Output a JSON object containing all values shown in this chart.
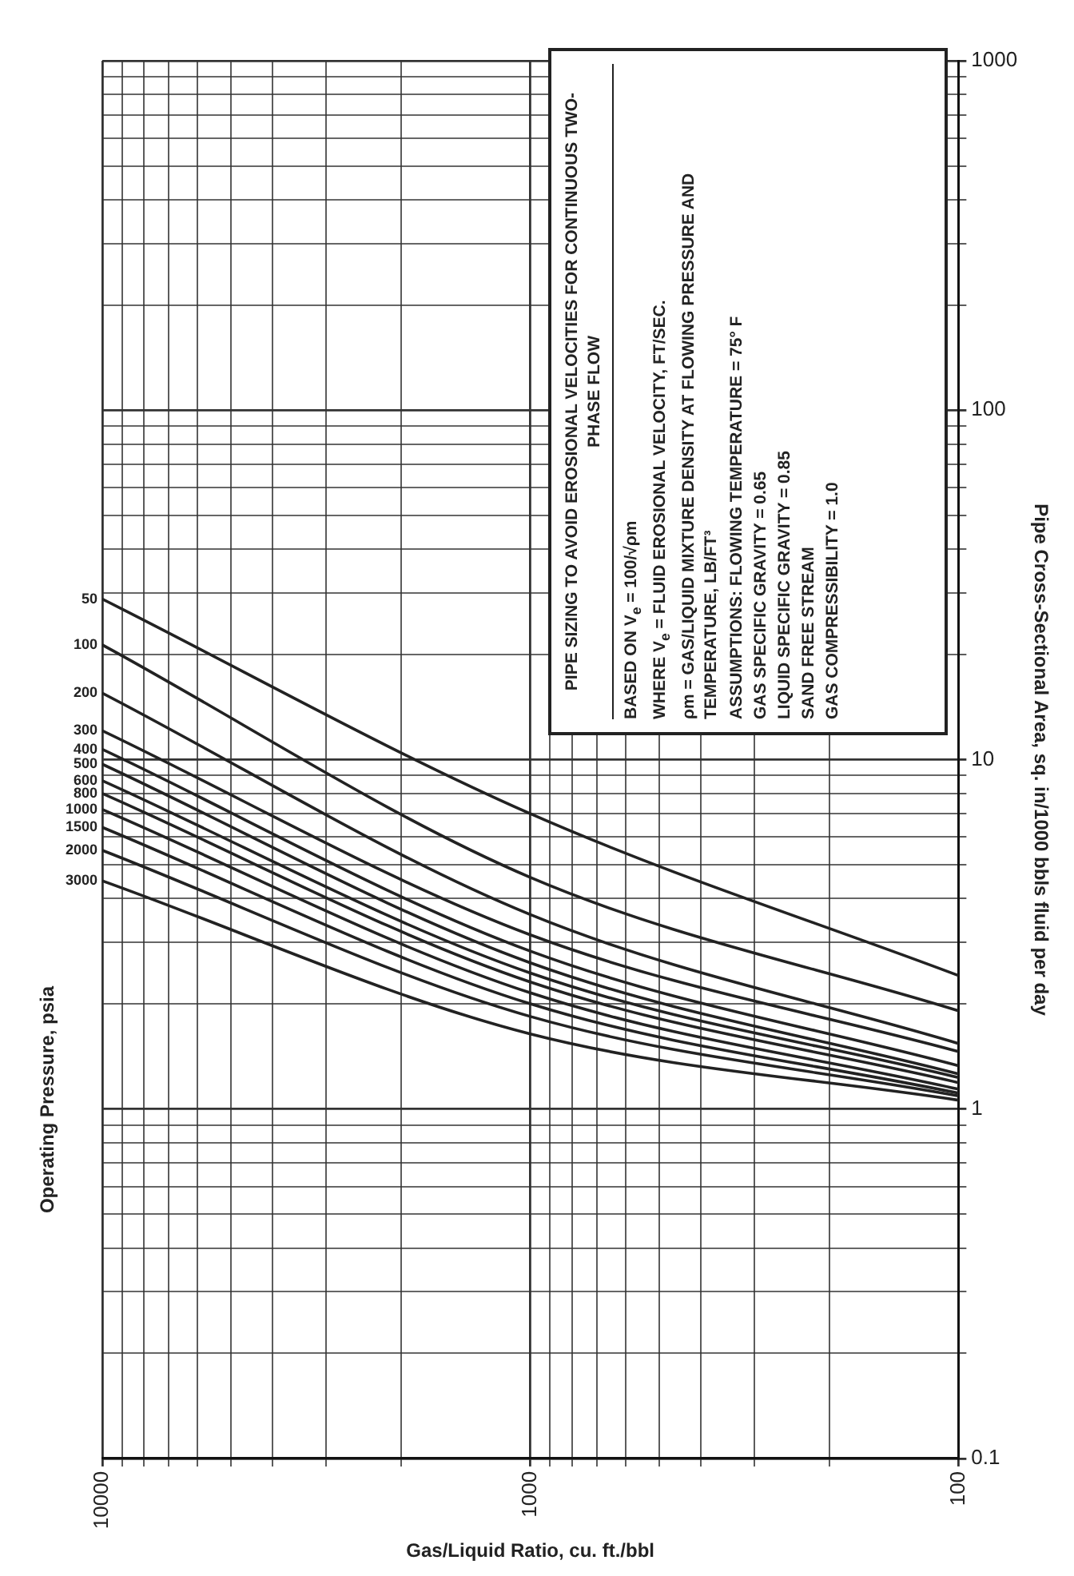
{
  "chart_data": {
    "type": "line",
    "title": "PIPE SIZING TO AVOID EROSIONAL VELOCITIES FOR CONTINUOUS TWO-PHASE FLOW",
    "xlabel": "Gas/Liquid Ratio, cu. ft./bbl",
    "ylabel": "Pipe Cross-Sectional Area, sq. in/1000 bbls fluid per day",
    "legend_title": "Operating Pressure, psia",
    "annotations": [
      "BASED ON V$_{e}$ = 100/√ρm",
      "WHERE V$_{e}$ = FLUID EROSIONAL VELOCITY, FT/SEC.",
      "ρm = GAS/LIQUID MIXTURE DENSITY AT FLOWING PRESSURE AND TEMPERATURE, LB/FT³",
      "ASSUMPTIONS: FLOWING TEMPERATURE = 75° F",
      "GAS SPECIFIC GRAVITY = 0.65",
      "LIQUID SPECIFIC GRAVITY = 0.85",
      "SAND FREE STREAM",
      "GAS COMPRESSIBILITY = 1.0"
    ],
    "log": "xy",
    "grid": true,
    "legend": false,
    "marker": "none",
    "line_style": "solid",
    "xlim": [
      10000,
      100
    ],
    "ylim": [
      0.1,
      1000
    ],
    "xticks": [
      100,
      {
        "value": 200,
        "label": null
      },
      {
        "value": 300,
        "label": null
      },
      {
        "value": 400,
        "label": null
      },
      {
        "value": 500,
        "label": null
      },
      {
        "value": 600,
        "label": null
      },
      {
        "value": 700,
        "label": null
      },
      {
        "value": 800,
        "label": null
      },
      {
        "value": 900,
        "label": null
      },
      1000,
      {
        "value": 2000,
        "label": null
      },
      {
        "value": 3000,
        "label": null
      },
      {
        "value": 4000,
        "label": null
      },
      {
        "value": 5000,
        "label": null
      },
      {
        "value": 6000,
        "label": null
      },
      {
        "value": 7000,
        "label": null
      },
      {
        "value": 8000,
        "label": null
      },
      {
        "value": 9000,
        "label": null
      },
      10000
    ],
    "yticks": [
      0.1,
      {
        "value": 0.2,
        "label": null
      },
      {
        "value": 0.3,
        "label": null
      },
      {
        "value": 0.4,
        "label": null
      },
      {
        "value": 0.5,
        "label": null
      },
      {
        "value": 0.6,
        "label": null
      },
      {
        "value": 0.7,
        "label": null
      },
      {
        "value": 0.8,
        "label": null
      },
      {
        "value": 0.9,
        "label": null
      },
      1,
      {
        "value": 2,
        "label": null
      },
      {
        "value": 3,
        "label": null
      },
      {
        "value": 4,
        "label": null
      },
      {
        "value": 5,
        "label": null
      },
      {
        "value": 6,
        "label": null
      },
      {
        "value": 7,
        "label": null
      },
      {
        "value": 8,
        "label": null
      },
      {
        "value": 9,
        "label": null
      },
      10,
      {
        "value": 20,
        "label": null
      },
      {
        "value": 30,
        "label": null
      },
      {
        "value": 40,
        "label": null
      },
      {
        "value": 50,
        "label": null
      },
      {
        "value": 60,
        "label": null
      },
      {
        "value": 70,
        "label": null
      },
      {
        "value": 80,
        "label": null
      },
      {
        "value": 90,
        "label": null
      },
      100,
      {
        "value": 200,
        "label": null
      },
      {
        "value": 300,
        "label": null
      },
      {
        "value": 400,
        "label": null
      },
      {
        "value": 500,
        "label": null
      },
      {
        "value": 600,
        "label": null
      },
      {
        "value": 700,
        "label": null
      },
      {
        "value": 800,
        "label": null
      },
      {
        "value": 900,
        "label": null
      },
      1000
    ],
    "series": [
      {
        "name": "50",
        "color": "#222222",
        "x": [
          10000,
          1000,
          100
        ],
        "values": [
          28.8,
          7.0,
          2.41
        ]
      },
      {
        "name": "100",
        "color": "#222222",
        "x": [
          10000,
          1000,
          100
        ],
        "values": [
          21.3,
          4.6,
          1.91
        ]
      },
      {
        "name": "200",
        "color": "#222222",
        "x": [
          10000,
          1000,
          100
        ],
        "values": [
          15.5,
          3.6,
          1.54
        ]
      },
      {
        "name": "300",
        "color": "#222222",
        "x": [
          10000,
          1000,
          100
        ],
        "values": [
          12.1,
          3.15,
          1.46
        ]
      },
      {
        "name": "400",
        "color": "#222222",
        "x": [
          10000,
          1000,
          100
        ],
        "values": [
          10.7,
          2.83,
          1.33
        ]
      },
      {
        "name": "500",
        "color": "#222222",
        "x": [
          10000,
          1000,
          100
        ],
        "values": [
          9.7,
          2.62,
          1.26
        ]
      },
      {
        "name": "600",
        "color": "#222222",
        "x": [
          10000,
          1000,
          100
        ],
        "values": [
          8.7,
          2.45,
          1.23
        ]
      },
      {
        "name": "800",
        "color": "#222222",
        "x": [
          10000,
          1000,
          100
        ],
        "values": [
          8.0,
          2.31,
          1.19
        ]
      },
      {
        "name": "1000",
        "color": "#222222",
        "x": [
          10000,
          1000,
          100
        ],
        "values": [
          7.2,
          2.15,
          1.14
        ]
      },
      {
        "name": "1500",
        "color": "#222222",
        "x": [
          10000,
          1000,
          100
        ],
        "values": [
          6.4,
          2.0,
          1.11
        ]
      },
      {
        "name": "2000",
        "color": "#222222",
        "x": [
          10000,
          1000,
          100
        ],
        "values": [
          5.5,
          1.84,
          1.09
        ]
      },
      {
        "name": "3000",
        "color": "#222222",
        "x": [
          10000,
          1000,
          100
        ],
        "values": [
          4.5,
          1.64,
          1.06
        ]
      }
    ]
  }
}
